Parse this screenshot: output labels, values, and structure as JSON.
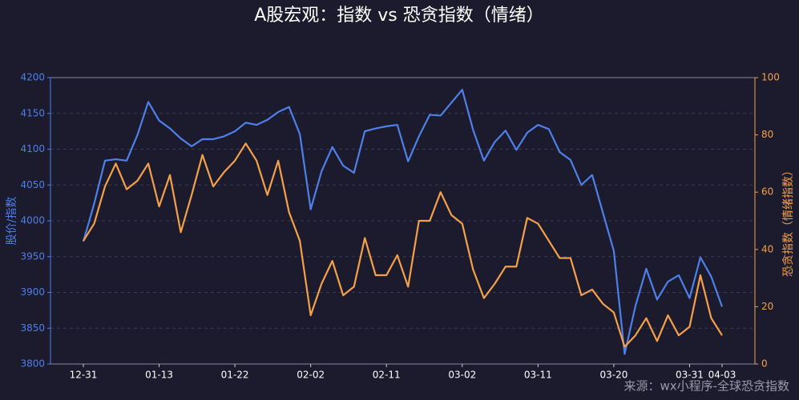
{
  "chart_data": {
    "type": "line",
    "title": "A股宏观：指数 vs 恐贪指数（情绪）",
    "ylabel": "股价/指数",
    "y2label": "恐贪指数（情绪指数）",
    "annotation": "来源：wx小程序-全球恐贪指数",
    "categories": [
      "12-31",
      null,
      null,
      null,
      null,
      null,
      null,
      "01-13",
      null,
      null,
      null,
      null,
      null,
      null,
      "01-22",
      null,
      null,
      null,
      null,
      null,
      null,
      "02-02",
      null,
      null,
      null,
      null,
      null,
      null,
      "02-11",
      null,
      null,
      null,
      null,
      null,
      null,
      "03-02",
      null,
      null,
      null,
      null,
      null,
      null,
      "03-11",
      null,
      null,
      null,
      null,
      null,
      null,
      "03-20",
      null,
      null,
      null,
      null,
      null,
      null,
      "03-31",
      null,
      null,
      "04-03"
    ],
    "series": [
      {
        "color": "#4f7fe8",
        "axis": "y",
        "values": [
          3971,
          4024,
          4084,
          4086,
          4084,
          4120,
          4166,
          4140,
          4129,
          4115,
          4104,
          4114,
          4114,
          4118,
          4125,
          4137,
          4134,
          4141,
          4152,
          4159,
          4121,
          4016,
          4069,
          4103,
          4077,
          4067,
          4125,
          4129,
          4132,
          4134,
          4083,
          4118,
          4148,
          4147,
          4165,
          4183,
          4127,
          4084,
          4110,
          4126,
          4099,
          4123,
          4134,
          4128,
          4096,
          4085,
          4050,
          4064,
          4011,
          3958,
          3814,
          3881,
          3933,
          3890,
          3915,
          3924,
          3892,
          3949,
          3922,
          3880
        ]
      },
      {
        "color": "#f5a04a",
        "axis": "y2",
        "values": [
          43,
          49,
          62,
          70,
          61,
          64,
          70,
          55,
          66,
          46,
          59,
          73,
          62,
          67,
          71,
          77,
          71,
          59,
          71,
          53,
          43,
          17,
          28,
          36,
          24,
          27,
          44,
          31,
          31,
          38,
          27,
          50,
          50,
          60,
          52,
          49,
          33,
          23,
          28,
          34,
          34,
          51,
          49,
          43,
          37,
          37,
          24,
          26,
          21,
          18,
          6,
          10,
          16,
          8,
          17,
          10,
          13,
          31,
          16,
          10
        ]
      }
    ],
    "ylim": [
      3800,
      4200
    ],
    "yticks": [
      3800,
      3850,
      3900,
      3950,
      4000,
      4050,
      4100,
      4150,
      4200
    ],
    "y2lim": [
      0,
      100
    ],
    "y2ticks": [
      0,
      20,
      40,
      60,
      80,
      100
    ],
    "grid": true
  }
}
